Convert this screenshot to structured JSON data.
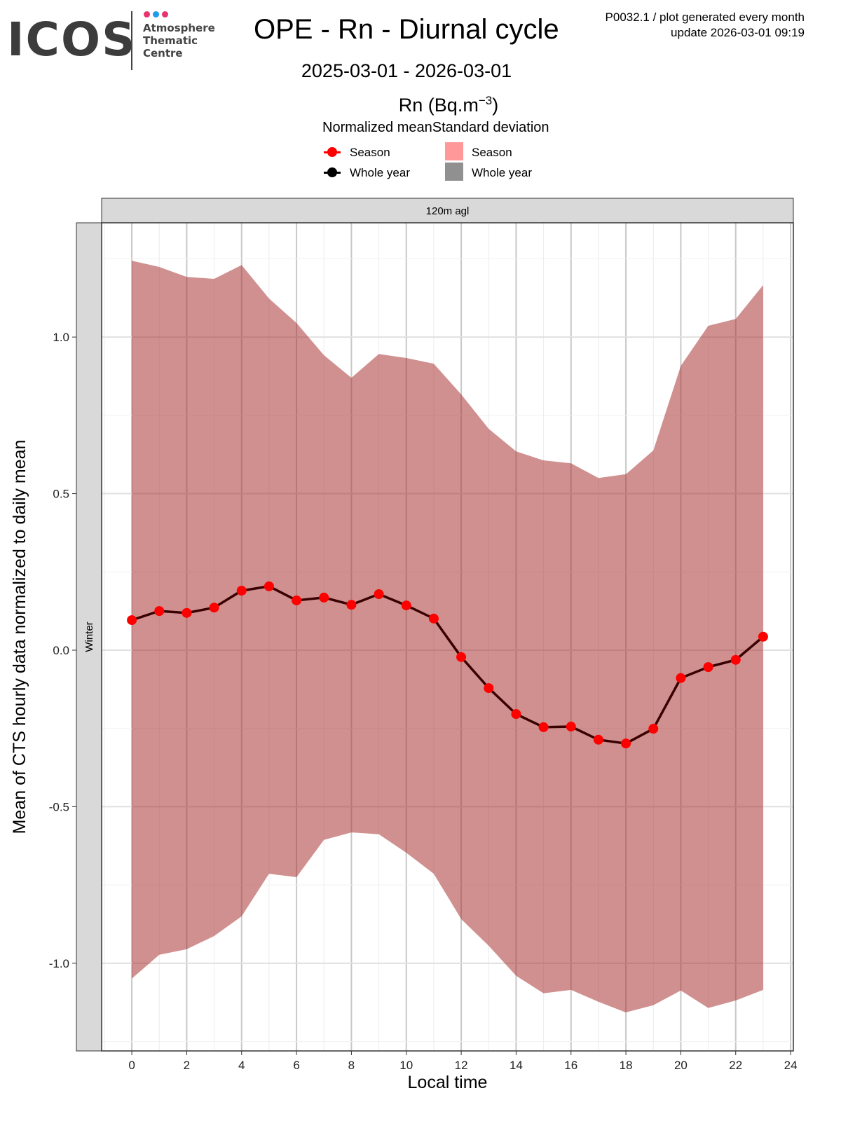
{
  "header": {
    "logo": "ICOS",
    "logo_sub": [
      "Atmosphere",
      "Thematic",
      "Centre"
    ],
    "title": "OPE - Rn - Diurnal cycle",
    "meta_line1": "P0032.1 / plot generated every month",
    "meta_line2": "update  2026-03-01 09:19",
    "dates": "2025-03-01 - 2026-03-01",
    "unit_main": "Rn (Bq.m",
    "unit_exp": "−3",
    "unit_close": ")"
  },
  "legend": {
    "title_mean": "Normalized mean",
    "title_sd": "Standard deviation",
    "mean_items": [
      "Season",
      "Whole year"
    ],
    "sd_items": [
      "Season",
      "Whole year"
    ]
  },
  "colors": {
    "season_point": "#ff0000",
    "line": "#3a0000",
    "ribbon": "#a52a2a",
    "whole_year": "#000000",
    "sd_season": "#ff9999",
    "sd_whole": "#909090"
  },
  "chart_data": {
    "type": "line",
    "title": "OPE - Rn - Diurnal cycle",
    "facet_top": "120m agl",
    "facet_side": "Winter",
    "xlabel": "Local time",
    "ylabel": "Mean of CTS hourly data normalized to daily mean",
    "xlim": [
      -1.1,
      24.1
    ],
    "ylim": [
      -1.28,
      1.365
    ],
    "xticks": [
      0,
      2,
      4,
      6,
      8,
      10,
      12,
      14,
      16,
      18,
      20,
      22,
      24
    ],
    "yticks": [
      -1.0,
      -0.5,
      0.0,
      0.5,
      1.0
    ],
    "ytick_labels": [
      "-1.0",
      "-0.5",
      "0.0",
      "0.5",
      "1.0"
    ],
    "grid": true,
    "x": [
      0,
      1,
      2,
      3,
      4,
      5,
      6,
      7,
      8,
      9,
      10,
      11,
      12,
      13,
      14,
      15,
      16,
      17,
      18,
      19,
      20,
      21,
      22,
      23
    ],
    "series": [
      {
        "name": "Season mean",
        "values": [
          0.096,
          0.125,
          0.119,
          0.136,
          0.19,
          0.204,
          0.159,
          0.168,
          0.145,
          0.179,
          0.143,
          0.101,
          -0.022,
          -0.121,
          -0.204,
          -0.246,
          -0.244,
          -0.286,
          -0.298,
          -0.251,
          -0.089,
          -0.054,
          -0.031,
          0.043
        ]
      },
      {
        "name": "Season sd upper",
        "values": [
          1.244,
          1.224,
          1.192,
          1.186,
          1.23,
          1.123,
          1.045,
          0.942,
          0.87,
          0.946,
          0.933,
          0.915,
          0.817,
          0.707,
          0.635,
          0.606,
          0.597,
          0.55,
          0.562,
          0.638,
          0.908,
          1.036,
          1.058,
          1.166
        ]
      },
      {
        "name": "Season sd lower",
        "values": [
          -1.049,
          -0.973,
          -0.955,
          -0.913,
          -0.85,
          -0.714,
          -0.725,
          -0.606,
          -0.582,
          -0.588,
          -0.647,
          -0.714,
          -0.859,
          -0.944,
          -1.04,
          -1.096,
          -1.085,
          -1.123,
          -1.157,
          -1.134,
          -1.087,
          -1.143,
          -1.119,
          -1.085
        ]
      }
    ]
  }
}
